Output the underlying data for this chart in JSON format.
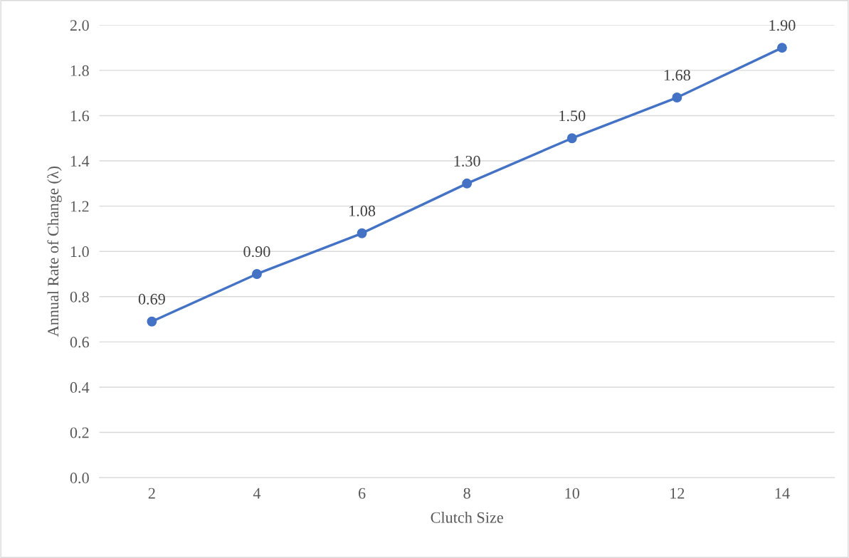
{
  "chart_data": {
    "type": "line",
    "xlabel": "Clutch Size",
    "ylabel": "Annual Rate of Change (λ)",
    "categories": [
      "2",
      "4",
      "6",
      "8",
      "10",
      "12",
      "14"
    ],
    "series": [
      {
        "color": "#4472c4",
        "values": [
          0.69,
          0.9,
          1.08,
          1.3,
          1.5,
          1.68,
          1.9
        ],
        "value_labels": [
          "0.69",
          "0.90",
          "1.08",
          "1.30",
          "1.50",
          "1.68",
          "1.90"
        ]
      }
    ],
    "ylim": [
      0,
      2.0
    ],
    "yticks": [
      {
        "value": 0,
        "label": "0.0"
      },
      0.2,
      0.4,
      0.6,
      0.8,
      {
        "value": 1,
        "label": "1.0"
      },
      1.2,
      1.4,
      1.6,
      1.8,
      {
        "value": 2,
        "label": "2.0"
      }
    ],
    "grid": "y",
    "marker": "circle",
    "line_style": "solid"
  }
}
